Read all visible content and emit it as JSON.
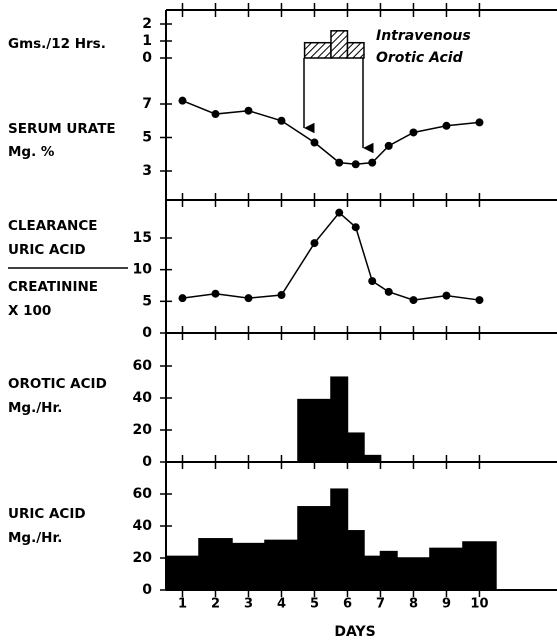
{
  "chart_data": [
    {
      "type": "histogram",
      "ylabel": [
        "Gms./12 Hrs."
      ],
      "annotation": [
        "Intravenous",
        "Orotic Acid"
      ],
      "bins": [
        4.7,
        5.5,
        6,
        6.5
      ],
      "values": [
        0.9,
        1.6,
        0.9
      ],
      "ylim": [
        0,
        2
      ],
      "yticks": [
        0,
        1,
        2
      ],
      "pattern": "hatch"
    },
    {
      "type": "line",
      "ylabel": [
        "SERUM URATE",
        "Mg. %"
      ],
      "x": [
        1,
        2,
        3,
        4,
        5,
        5.75,
        6.25,
        6.75,
        7.25,
        8,
        9,
        10
      ],
      "values": [
        7.2,
        6.4,
        6.6,
        6.0,
        4.7,
        3.5,
        3.4,
        3.5,
        4.5,
        5.3,
        5.7,
        5.9
      ],
      "ylim": [
        3,
        7
      ],
      "yticks": [
        3,
        5,
        7
      ],
      "color": "#000000"
    },
    {
      "type": "line",
      "ylabel": [
        "CLEARANCE",
        "URIC ACID",
        "CREATININE",
        "X 100"
      ],
      "x": [
        1,
        2,
        3,
        4,
        5,
        5.75,
        6.25,
        6.75,
        7.25,
        8,
        9,
        10
      ],
      "values": [
        5.5,
        6.2,
        5.5,
        6.0,
        14.2,
        19,
        16.7,
        8.2,
        6.5,
        5.2,
        5.9,
        5.2
      ],
      "ylim": [
        0,
        15
      ],
      "yticks": [
        0,
        5,
        10,
        15
      ],
      "color": "#000000"
    },
    {
      "type": "histogram",
      "ylabel": [
        "OROTIC ACID",
        "Mg./Hr."
      ],
      "bins": [
        4.5,
        5.5,
        6,
        6.5,
        7
      ],
      "values": [
        39,
        53,
        18,
        4
      ],
      "ylim": [
        0,
        60
      ],
      "yticks": [
        0,
        20,
        40,
        60
      ],
      "color": "#000000"
    },
    {
      "type": "histogram",
      "ylabel": [
        "URIC ACID",
        "Mg./Hr."
      ],
      "bins": [
        0.5,
        1.5,
        2.5,
        3.5,
        4.5,
        5.5,
        6,
        6.5,
        7,
        7.5,
        8.5,
        9.5,
        10.5
      ],
      "values": [
        21,
        32,
        29,
        31,
        52,
        63,
        37,
        21,
        24,
        20,
        26,
        30
      ],
      "ylim": [
        0,
        60
      ],
      "yticks": [
        0,
        20,
        40,
        60
      ],
      "color": "#000000",
      "xlim": [
        0.5,
        12.35
      ],
      "xticks": [
        1,
        2,
        3,
        4,
        5,
        6,
        7,
        8,
        9,
        10
      ],
      "xlabel": "DAYS"
    }
  ]
}
